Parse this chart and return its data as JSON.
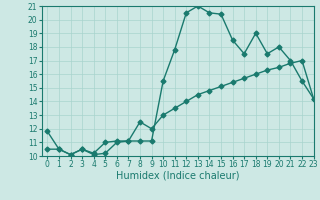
{
  "line1_x": [
    0,
    1,
    2,
    3,
    4,
    5,
    6,
    7,
    8,
    9,
    10,
    11,
    12,
    13,
    14,
    15,
    16,
    17,
    18,
    19,
    20,
    21,
    22,
    23
  ],
  "line1_y": [
    11.8,
    10.5,
    10.1,
    10.5,
    10.2,
    11.0,
    11.1,
    11.1,
    11.1,
    11.1,
    15.5,
    17.8,
    20.5,
    21.0,
    20.5,
    20.4,
    18.5,
    17.5,
    19.0,
    17.5,
    18.0,
    17.0,
    15.5,
    14.2
  ],
  "line2_x": [
    0,
    1,
    2,
    3,
    4,
    5,
    6,
    7,
    8,
    9,
    10,
    11,
    12,
    13,
    14,
    15,
    16,
    17,
    18,
    19,
    20,
    21,
    22,
    23
  ],
  "line2_y": [
    10.5,
    10.5,
    10.1,
    10.5,
    10.1,
    10.2,
    11.0,
    11.1,
    12.5,
    12.0,
    13.0,
    13.5,
    14.0,
    14.5,
    14.8,
    15.1,
    15.4,
    15.7,
    16.0,
    16.3,
    16.5,
    16.8,
    17.0,
    14.2
  ],
  "line_color": "#1a7a6e",
  "bg_color": "#cde8e4",
  "grid_color": "#a8d4ce",
  "xlabel": "Humidex (Indice chaleur)",
  "ylim": [
    10,
    21
  ],
  "xlim": [
    -0.5,
    23
  ],
  "yticks": [
    10,
    11,
    12,
    13,
    14,
    15,
    16,
    17,
    18,
    19,
    20,
    21
  ],
  "xticks": [
    0,
    1,
    2,
    3,
    4,
    5,
    6,
    7,
    8,
    9,
    10,
    11,
    12,
    13,
    14,
    15,
    16,
    17,
    18,
    19,
    20,
    21,
    22,
    23
  ],
  "marker": "D",
  "markersize": 2.5,
  "linewidth": 1.0,
  "xlabel_fontsize": 7,
  "tick_fontsize": 5.5,
  "figsize": [
    3.2,
    2.0
  ],
  "dpi": 100
}
